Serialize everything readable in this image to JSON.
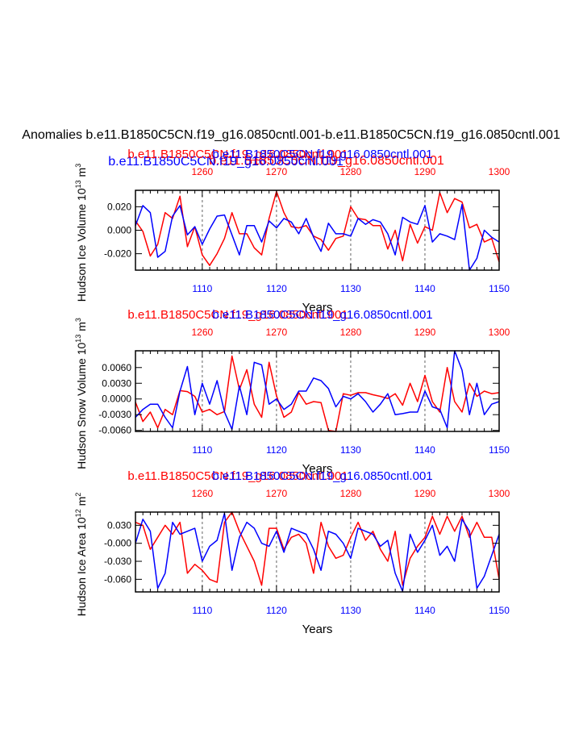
{
  "figure": {
    "title": "Anomalies b.e11.B1850C5CN.f19_g16.0850cntl.001-b.e11.B1850C5CN.f19_g16.0850cntl.001",
    "top_blue_label": "b.e11.B1850C5CN.f19_g16.0850cntl.001",
    "top_red_label": "b.e11.B1850C5CN.f19_g16.0850cntl.001"
  },
  "colors": {
    "red": "#ff0000",
    "blue": "#0000ff",
    "grid": "#888888",
    "axis": "#000000"
  },
  "chart_data": [
    {
      "type": "line",
      "name": "hudson-ice-volume",
      "ylabel": "Hudson Ice Volume 10",
      "ylabel_sup": "13",
      "ylabel_unit": "m",
      "ylabel_unit_sup": "3",
      "xlabel": "Years",
      "overlap_red": "b.e11.B1850C5CN.f19_g16.0850cntl.001",
      "overlap_blue": "b.e11.B1850C5CN.f19_g16.0850cntl.001",
      "ylim": [
        -0.034,
        0.034
      ],
      "yticks": [
        0.02,
        0.0,
        -0.02
      ],
      "ytick_labels": [
        "0.020",
        "0.000",
        "-0.020"
      ],
      "x_bottom": {
        "range": [
          1101,
          1150
        ],
        "ticks": [
          1110,
          1120,
          1130,
          1140,
          1150
        ]
      },
      "x_top": {
        "range": [
          1251,
          1300
        ],
        "ticks": [
          1260,
          1270,
          1280,
          1290,
          1300
        ]
      },
      "series": [
        {
          "name": "red",
          "color": "#ff0000",
          "values": [
            0.008,
            -0.001,
            -0.022,
            -0.012,
            0.015,
            0.01,
            0.029,
            -0.014,
            0.003,
            -0.021,
            -0.03,
            -0.02,
            -0.007,
            0.015,
            -0.003,
            -0.003,
            -0.015,
            -0.021,
            0.01,
            0.033,
            0.015,
            0.003,
            0.002,
            0.004,
            -0.005,
            -0.008,
            -0.017,
            -0.007,
            -0.005,
            0.02,
            0.01,
            0.009,
            0.004,
            0.004,
            -0.016,
            0.0,
            -0.026,
            0.005,
            -0.011,
            0.003,
            0.0,
            0.032,
            0.015,
            0.027,
            0.024,
            0.002,
            0.005,
            -0.01,
            -0.007,
            -0.027
          ]
        },
        {
          "name": "blue",
          "color": "#0000ff",
          "values": [
            0.004,
            0.021,
            0.015,
            -0.023,
            -0.018,
            0.012,
            0.021,
            -0.004,
            0.003,
            -0.012,
            0.001,
            0.012,
            0.013,
            -0.004,
            -0.021,
            0.004,
            0.004,
            -0.01,
            0.008,
            0.002,
            0.01,
            0.007,
            -0.003,
            0.01,
            -0.006,
            -0.018,
            0.006,
            -0.003,
            -0.003,
            -0.005,
            0.01,
            0.005,
            0.009,
            0.007,
            -0.003,
            -0.021,
            0.011,
            0.007,
            0.005,
            0.021,
            -0.01,
            -0.003,
            -0.005,
            -0.008,
            0.022,
            -0.034,
            -0.024,
            0.0,
            -0.006,
            -0.01
          ]
        }
      ]
    },
    {
      "type": "line",
      "name": "hudson-snow-volume",
      "ylabel": "Hudson Snow Volume 10",
      "ylabel_sup": "13",
      "ylabel_unit": "m",
      "ylabel_unit_sup": "3",
      "xlabel": "Years",
      "overlap_red": "b.e11.B1850C5CN.f19_g16.0850cntl.001",
      "overlap_blue": "b.e11.B1850C5CN.f19_g16.0850cntl.001",
      "ylim": [
        -0.0062,
        0.0092
      ],
      "yticks": [
        0.006,
        0.003,
        0.0,
        -0.003,
        -0.006
      ],
      "ytick_labels": [
        "0.0060",
        "0.0030",
        "0.0000",
        "-0.0030",
        "-0.0060"
      ],
      "x_bottom": {
        "range": [
          1101,
          1150
        ],
        "ticks": [
          1110,
          1120,
          1130,
          1140,
          1150
        ]
      },
      "x_top": {
        "range": [
          1251,
          1300
        ],
        "ticks": [
          1260,
          1270,
          1280,
          1290,
          1300
        ]
      },
      "series": [
        {
          "name": "red",
          "color": "#ff0000",
          "values": [
            -0.0006,
            -0.0043,
            -0.0025,
            -0.0055,
            -0.002,
            -0.003,
            0.0016,
            0.0014,
            0.0005,
            -0.0025,
            -0.002,
            -0.003,
            -0.0024,
            0.0082,
            0.0018,
            0.0056,
            -0.001,
            -0.0035,
            0.007,
            0.0006,
            -0.0035,
            -0.0025,
            0.0012,
            -0.001,
            -0.0005,
            -0.0007,
            -0.006,
            -0.0062,
            0.001,
            0.0007,
            0.0012,
            0.0012,
            0.0008,
            0.0005,
            0.0001,
            0.001,
            -0.0012,
            0.003,
            -0.0005,
            0.0045,
            -0.0005,
            -0.0025,
            0.006,
            -0.0005,
            -0.0025,
            0.003,
            0.0005,
            0.0015,
            0.001,
            0.0012
          ]
        },
        {
          "name": "blue",
          "color": "#0000ff",
          "values": [
            -0.0035,
            -0.002,
            -0.001,
            -0.001,
            -0.0035,
            -0.0055,
            0.0015,
            0.0062,
            -0.003,
            0.003,
            -0.001,
            0.0035,
            -0.0025,
            -0.0058,
            0.0025,
            -0.003,
            0.007,
            0.0065,
            -0.001,
            0.0,
            -0.002,
            -0.001,
            0.0015,
            0.0015,
            0.004,
            0.0035,
            0.002,
            -0.0015,
            0.0005,
            0.0,
            0.001,
            -0.0005,
            -0.0025,
            -0.001,
            0.001,
            -0.003,
            -0.0028,
            -0.0025,
            -0.0025,
            0.0015,
            -0.0015,
            -0.002,
            -0.0055,
            0.0092,
            0.0055,
            -0.003,
            0.003,
            -0.003,
            -0.001,
            -0.0005
          ]
        }
      ]
    },
    {
      "type": "line",
      "name": "hudson-ice-area",
      "ylabel": "Hudson Ice Area 10",
      "ylabel_sup": "12",
      "ylabel_unit": "m",
      "ylabel_unit_sup": "2",
      "xlabel": "Years",
      "overlap_red": "b.e11.B1850C5CN.f19_g16.0850cntl.001",
      "overlap_blue": "b.e11.B1850C5CN.f19_g16.0850cntl.001",
      "ylim": [
        -0.081,
        0.052
      ],
      "yticks": [
        0.03,
        0.0,
        -0.03,
        -0.06
      ],
      "ytick_labels": [
        "0.030",
        "-0.000",
        "-0.030",
        "-0.060"
      ],
      "x_bottom": {
        "range": [
          1101,
          1150
        ],
        "ticks": [
          1110,
          1120,
          1130,
          1140,
          1150
        ]
      },
      "x_top": {
        "range": [
          1251,
          1300
        ],
        "ticks": [
          1260,
          1270,
          1280,
          1290,
          1300
        ]
      },
      "series": [
        {
          "name": "red",
          "color": "#ff0000",
          "values": [
            0.035,
            0.03,
            -0.01,
            0.01,
            0.03,
            0.015,
            0.035,
            -0.05,
            -0.035,
            -0.045,
            -0.06,
            -0.065,
            0.035,
            0.052,
            0.02,
            -0.005,
            -0.03,
            -0.07,
            0.025,
            0.025,
            -0.01,
            0.01,
            0.015,
            0.0,
            -0.05,
            0.035,
            -0.005,
            -0.025,
            -0.02,
            0.01,
            0.035,
            0.005,
            0.02,
            -0.01,
            -0.03,
            0.02,
            -0.07,
            -0.025,
            -0.005,
            0.01,
            0.045,
            0.015,
            0.045,
            0.02,
            0.045,
            0.01,
            0.035,
            0.01,
            0.01,
            -0.06
          ]
        },
        {
          "name": "blue",
          "color": "#0000ff",
          "values": [
            0.0,
            0.04,
            0.02,
            -0.075,
            -0.05,
            0.035,
            0.015,
            0.02,
            0.025,
            -0.03,
            -0.005,
            0.005,
            0.05,
            -0.045,
            0.01,
            0.035,
            0.025,
            0.0,
            -0.005,
            0.02,
            -0.015,
            0.025,
            0.02,
            0.015,
            -0.01,
            -0.045,
            0.02,
            0.015,
            0.0,
            -0.025,
            0.025,
            0.02,
            0.015,
            -0.005,
            0.005,
            -0.05,
            -0.08,
            0.015,
            -0.015,
            0.005,
            0.03,
            -0.02,
            -0.005,
            -0.03,
            0.04,
            0.02,
            -0.075,
            -0.055,
            -0.02,
            0.015
          ]
        }
      ]
    }
  ]
}
